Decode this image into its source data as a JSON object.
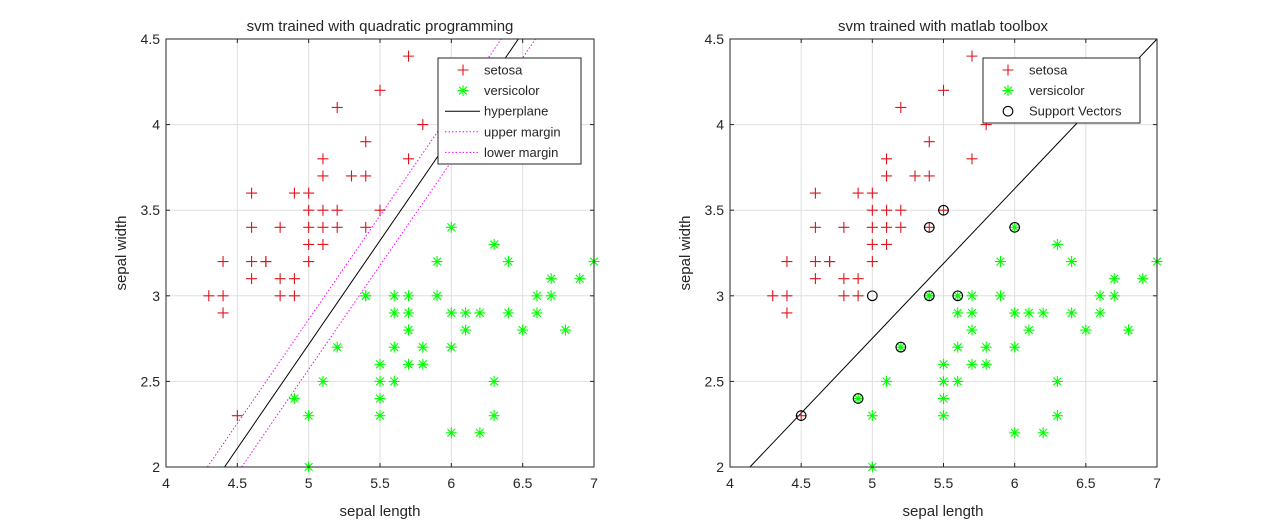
{
  "colors": {
    "setosa": "#e0141e",
    "versicolor": "#00ff00",
    "hyperplane": "#000000",
    "margin": "#ff00ff",
    "grid": "#dfdfdf",
    "axis": "#262626"
  },
  "chart_data": [
    {
      "type": "scatter",
      "title": "svm trained with quadratic programming",
      "xlabel": "sepal length",
      "ylabel": "sepal width",
      "xlim": [
        4,
        7
      ],
      "ylim": [
        2,
        4.5
      ],
      "xticks": [
        "4",
        "4.5",
        "5",
        "5.5",
        "6",
        "6.5",
        "7"
      ],
      "yticks": [
        "2",
        "2.5",
        "3",
        "3.5",
        "4",
        "4.5"
      ],
      "grid": true,
      "legend_position": "top-right",
      "legend": [
        "setosa",
        "versicolor",
        "hyperplane",
        "upper margin",
        "lower margin"
      ],
      "series": [
        {
          "name": "setosa",
          "marker": "+",
          "points": [
            [
              5.1,
              3.5
            ],
            [
              4.9,
              3.0
            ],
            [
              4.7,
              3.2
            ],
            [
              4.6,
              3.1
            ],
            [
              5.0,
              3.6
            ],
            [
              5.4,
              3.9
            ],
            [
              4.6,
              3.4
            ],
            [
              5.0,
              3.4
            ],
            [
              4.4,
              2.9
            ],
            [
              4.9,
              3.1
            ],
            [
              5.4,
              3.7
            ],
            [
              4.8,
              3.4
            ],
            [
              4.8,
              3.0
            ],
            [
              4.3,
              3.0
            ],
            [
              5.8,
              4.0
            ],
            [
              5.7,
              4.4
            ],
            [
              5.1,
              3.8
            ],
            [
              5.7,
              3.8
            ],
            [
              5.1,
              3.7
            ],
            [
              5.2,
              3.5
            ],
            [
              5.2,
              3.4
            ],
            [
              4.7,
              3.2
            ],
            [
              4.8,
              3.1
            ],
            [
              5.2,
              4.1
            ],
            [
              5.5,
              4.2
            ],
            [
              5.0,
              3.2
            ],
            [
              5.5,
              3.5
            ],
            [
              4.4,
              3.0
            ],
            [
              5.1,
              3.4
            ],
            [
              5.0,
              3.5
            ],
            [
              4.5,
              2.3
            ],
            [
              4.4,
              3.2
            ],
            [
              5.0,
              3.3
            ],
            [
              4.6,
              3.2
            ],
            [
              5.3,
              3.7
            ],
            [
              4.9,
              3.6
            ],
            [
              5.4,
              3.4
            ],
            [
              5.1,
              3.3
            ],
            [
              4.6,
              3.6
            ]
          ]
        },
        {
          "name": "versicolor",
          "marker": "*",
          "points": [
            [
              7.0,
              3.2
            ],
            [
              6.4,
              3.2
            ],
            [
              6.9,
              3.1
            ],
            [
              5.5,
              2.3
            ],
            [
              6.5,
              2.8
            ],
            [
              5.7,
              2.8
            ],
            [
              6.3,
              3.3
            ],
            [
              4.9,
              2.4
            ],
            [
              6.6,
              2.9
            ],
            [
              5.2,
              2.7
            ],
            [
              5.0,
              2.0
            ],
            [
              5.9,
              3.0
            ],
            [
              6.0,
              2.2
            ],
            [
              6.1,
              2.9
            ],
            [
              5.6,
              2.9
            ],
            [
              6.7,
              3.1
            ],
            [
              5.6,
              3.0
            ],
            [
              5.8,
              2.7
            ],
            [
              6.2,
              2.2
            ],
            [
              5.6,
              2.5
            ],
            [
              5.9,
              3.2
            ],
            [
              6.1,
              2.8
            ],
            [
              6.3,
              2.5
            ],
            [
              6.4,
              2.9
            ],
            [
              6.6,
              3.0
            ],
            [
              6.8,
              2.8
            ],
            [
              6.7,
              3.0
            ],
            [
              6.0,
              2.9
            ],
            [
              5.7,
              2.6
            ],
            [
              5.5,
              2.4
            ],
            [
              5.5,
              2.6
            ],
            [
              5.8,
              2.6
            ],
            [
              5.4,
              3.0
            ],
            [
              6.0,
              3.4
            ],
            [
              6.3,
              2.3
            ],
            [
              5.6,
              2.7
            ],
            [
              5.5,
              2.5
            ],
            [
              5.0,
              2.3
            ],
            [
              5.7,
              2.9
            ],
            [
              5.7,
              3.0
            ],
            [
              6.2,
              2.9
            ],
            [
              5.1,
              2.5
            ],
            [
              6.0,
              2.7
            ],
            [
              5.4,
              3.0
            ]
          ]
        }
      ],
      "lines": [
        {
          "name": "hyperplane",
          "style": "solid",
          "from": [
            4.41,
            2.0
          ],
          "to": [
            6.47,
            4.5
          ]
        },
        {
          "name": "upper margin",
          "style": "dotted",
          "from": [
            4.29,
            2.0
          ],
          "to": [
            6.35,
            4.5
          ]
        },
        {
          "name": "lower margin",
          "style": "dotted",
          "from": [
            4.53,
            2.0
          ],
          "to": [
            6.59,
            4.5
          ]
        }
      ]
    },
    {
      "type": "scatter",
      "title": "svm trained with matlab toolbox",
      "xlabel": "sepal length",
      "ylabel": "sepal width",
      "xlim": [
        4,
        7
      ],
      "ylim": [
        2,
        4.5
      ],
      "xticks": [
        "4",
        "4.5",
        "5",
        "5.5",
        "6",
        "6.5",
        "7"
      ],
      "yticks": [
        "2",
        "2.5",
        "3",
        "3.5",
        "4",
        "4.5"
      ],
      "grid": true,
      "legend_position": "top-right",
      "legend": [
        "setosa",
        "versicolor",
        "Support Vectors"
      ],
      "series": [
        {
          "name": "setosa",
          "marker": "+",
          "points": [
            [
              5.1,
              3.5
            ],
            [
              4.9,
              3.0
            ],
            [
              4.7,
              3.2
            ],
            [
              4.6,
              3.1
            ],
            [
              5.0,
              3.6
            ],
            [
              5.4,
              3.9
            ],
            [
              4.6,
              3.4
            ],
            [
              5.0,
              3.4
            ],
            [
              4.4,
              2.9
            ],
            [
              4.9,
              3.1
            ],
            [
              5.4,
              3.7
            ],
            [
              4.8,
              3.4
            ],
            [
              4.8,
              3.0
            ],
            [
              4.3,
              3.0
            ],
            [
              5.8,
              4.0
            ],
            [
              5.7,
              4.4
            ],
            [
              5.1,
              3.8
            ],
            [
              5.7,
              3.8
            ],
            [
              5.1,
              3.7
            ],
            [
              5.2,
              3.5
            ],
            [
              5.2,
              3.4
            ],
            [
              4.7,
              3.2
            ],
            [
              4.8,
              3.1
            ],
            [
              5.2,
              4.1
            ],
            [
              5.5,
              4.2
            ],
            [
              5.0,
              3.2
            ],
            [
              5.5,
              3.5
            ],
            [
              4.4,
              3.0
            ],
            [
              5.1,
              3.4
            ],
            [
              5.0,
              3.5
            ],
            [
              4.5,
              2.3
            ],
            [
              4.4,
              3.2
            ],
            [
              5.0,
              3.3
            ],
            [
              4.6,
              3.2
            ],
            [
              5.3,
              3.7
            ],
            [
              4.9,
              3.6
            ],
            [
              5.4,
              3.4
            ],
            [
              5.1,
              3.3
            ],
            [
              4.6,
              3.6
            ]
          ]
        },
        {
          "name": "versicolor",
          "marker": "*",
          "points": [
            [
              7.0,
              3.2
            ],
            [
              6.4,
              3.2
            ],
            [
              6.9,
              3.1
            ],
            [
              5.5,
              2.3
            ],
            [
              6.5,
              2.8
            ],
            [
              5.7,
              2.8
            ],
            [
              6.3,
              3.3
            ],
            [
              4.9,
              2.4
            ],
            [
              6.6,
              2.9
            ],
            [
              5.2,
              2.7
            ],
            [
              5.0,
              2.0
            ],
            [
              5.9,
              3.0
            ],
            [
              6.0,
              2.2
            ],
            [
              6.1,
              2.9
            ],
            [
              5.6,
              2.9
            ],
            [
              6.7,
              3.1
            ],
            [
              5.6,
              3.0
            ],
            [
              5.8,
              2.7
            ],
            [
              6.2,
              2.2
            ],
            [
              5.6,
              2.5
            ],
            [
              5.9,
              3.2
            ],
            [
              6.1,
              2.8
            ],
            [
              6.3,
              2.5
            ],
            [
              6.4,
              2.9
            ],
            [
              6.6,
              3.0
            ],
            [
              6.8,
              2.8
            ],
            [
              6.7,
              3.0
            ],
            [
              6.0,
              2.9
            ],
            [
              5.7,
              2.6
            ],
            [
              5.5,
              2.4
            ],
            [
              5.5,
              2.6
            ],
            [
              5.8,
              2.6
            ],
            [
              5.4,
              3.0
            ],
            [
              6.0,
              3.4
            ],
            [
              6.3,
              2.3
            ],
            [
              5.6,
              2.7
            ],
            [
              5.5,
              2.5
            ],
            [
              5.0,
              2.3
            ],
            [
              5.7,
              2.9
            ],
            [
              5.7,
              3.0
            ],
            [
              6.2,
              2.9
            ],
            [
              5.1,
              2.5
            ],
            [
              6.0,
              2.7
            ],
            [
              5.4,
              3.0
            ]
          ]
        },
        {
          "name": "Support Vectors",
          "marker": "o",
          "points": [
            [
              4.5,
              2.3
            ],
            [
              5.0,
              3.0
            ],
            [
              5.4,
              3.4
            ],
            [
              5.5,
              3.5
            ],
            [
              4.9,
              2.4
            ],
            [
              5.2,
              2.7
            ],
            [
              5.4,
              3.0
            ],
            [
              5.6,
              3.0
            ],
            [
              6.0,
              3.4
            ]
          ]
        }
      ],
      "lines": [
        {
          "name": "hyperplane",
          "style": "solid",
          "from": [
            4.14,
            2.0
          ],
          "to": [
            7.0,
            4.5
          ]
        }
      ]
    }
  ]
}
